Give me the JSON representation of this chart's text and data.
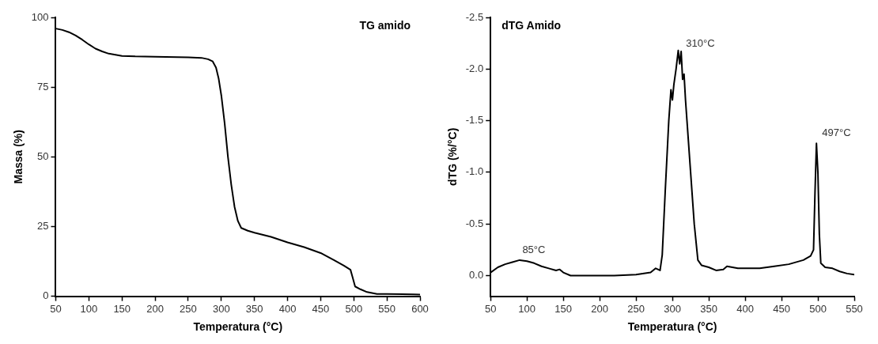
{
  "chart_data": [
    {
      "type": "line",
      "title": "TG amido",
      "xlabel": "Temperatura (°C)",
      "ylabel": "Massa (%)",
      "xlim": [
        50,
        600
      ],
      "xticks": [
        50,
        100,
        150,
        200,
        250,
        300,
        350,
        400,
        450,
        500,
        550,
        600
      ],
      "ylim": [
        0,
        100
      ],
      "yticks": [
        0,
        25,
        50,
        75,
        100
      ],
      "grid": false,
      "legend": false,
      "marker": "none",
      "line_style": "solid",
      "series": [
        {
          "color": "#000000",
          "x": [
            50,
            60,
            70,
            80,
            90,
            100,
            110,
            120,
            130,
            140,
            150,
            170,
            200,
            250,
            270,
            280,
            287,
            292,
            296,
            300,
            305,
            310,
            315,
            320,
            325,
            330,
            340,
            350,
            375,
            400,
            425,
            450,
            470,
            485,
            495,
            498,
            502,
            510,
            520,
            535,
            550,
            590,
            600
          ],
          "values": [
            96,
            95.5,
            94.7,
            93.5,
            92,
            90.3,
            88.8,
            87.8,
            87,
            86.6,
            86.2,
            86,
            85.9,
            85.7,
            85.5,
            85,
            84.2,
            82,
            78,
            72,
            62,
            50,
            40,
            32,
            27,
            24.5,
            23.5,
            22.8,
            21.3,
            19.3,
            17.6,
            15.5,
            13,
            11,
            9.5,
            7,
            3.5,
            2.5,
            1.5,
            0.8,
            0.8,
            0.7,
            0.6
          ]
        }
      ]
    },
    {
      "type": "line",
      "title": "dTG Amido",
      "xlabel": "Temperatura (°C)",
      "ylabel": "dTG (%/°C)",
      "xlim": [
        50,
        550
      ],
      "xticks": [
        50,
        100,
        150,
        200,
        250,
        300,
        350,
        400,
        450,
        500,
        550
      ],
      "ylim": [
        0.2,
        -2.5
      ],
      "yticks": [
        {
          "value": 0,
          "label": "0.0"
        },
        {
          "value": -0.5,
          "label": "-0.5"
        },
        {
          "value": -1,
          "label": "-1.0"
        },
        {
          "value": -1.5,
          "label": "-1.5"
        },
        {
          "value": -2,
          "label": "-2.0"
        },
        {
          "value": -2.5,
          "label": "-2.5"
        }
      ],
      "grid": false,
      "legend": false,
      "marker": "none",
      "line_style": "solid",
      "annotations": [
        {
          "text": "85°C",
          "x": 85,
          "y": -0.15
        },
        {
          "text": "310°C",
          "x": 310,
          "y": -2.15
        },
        {
          "text": "497°C",
          "x": 497,
          "y": -1.28
        }
      ],
      "series": [
        {
          "color": "#000000",
          "x": [
            50,
            60,
            70,
            80,
            90,
            100,
            110,
            120,
            130,
            140,
            145,
            150,
            160,
            180,
            200,
            220,
            250,
            270,
            277,
            283,
            286,
            290,
            295,
            298,
            300,
            302,
            305,
            308,
            310,
            312,
            314,
            316,
            318,
            320,
            325,
            330,
            335,
            340,
            350,
            360,
            370,
            375,
            390,
            400,
            420,
            440,
            460,
            480,
            490,
            494,
            496,
            498,
            500,
            502,
            504,
            510,
            520,
            530,
            540,
            550
          ],
          "values": [
            -0.03,
            -0.08,
            -0.11,
            -0.13,
            -0.15,
            -0.14,
            -0.12,
            -0.09,
            -0.07,
            -0.05,
            -0.06,
            -0.03,
            0,
            0,
            0,
            0,
            -0.01,
            -0.03,
            -0.07,
            -0.05,
            -0.2,
            -0.8,
            -1.5,
            -1.8,
            -1.7,
            -1.85,
            -2,
            -2.18,
            -2.05,
            -2.17,
            -1.9,
            -1.95,
            -1.7,
            -1.5,
            -1,
            -0.5,
            -0.15,
            -0.1,
            -0.08,
            -0.05,
            -0.06,
            -0.09,
            -0.07,
            -0.07,
            -0.07,
            -0.09,
            -0.11,
            -0.15,
            -0.19,
            -0.25,
            -0.8,
            -1.28,
            -1,
            -0.4,
            -0.12,
            -0.08,
            -0.07,
            -0.04,
            -0.02,
            -0.01
          ]
        }
      ]
    }
  ]
}
